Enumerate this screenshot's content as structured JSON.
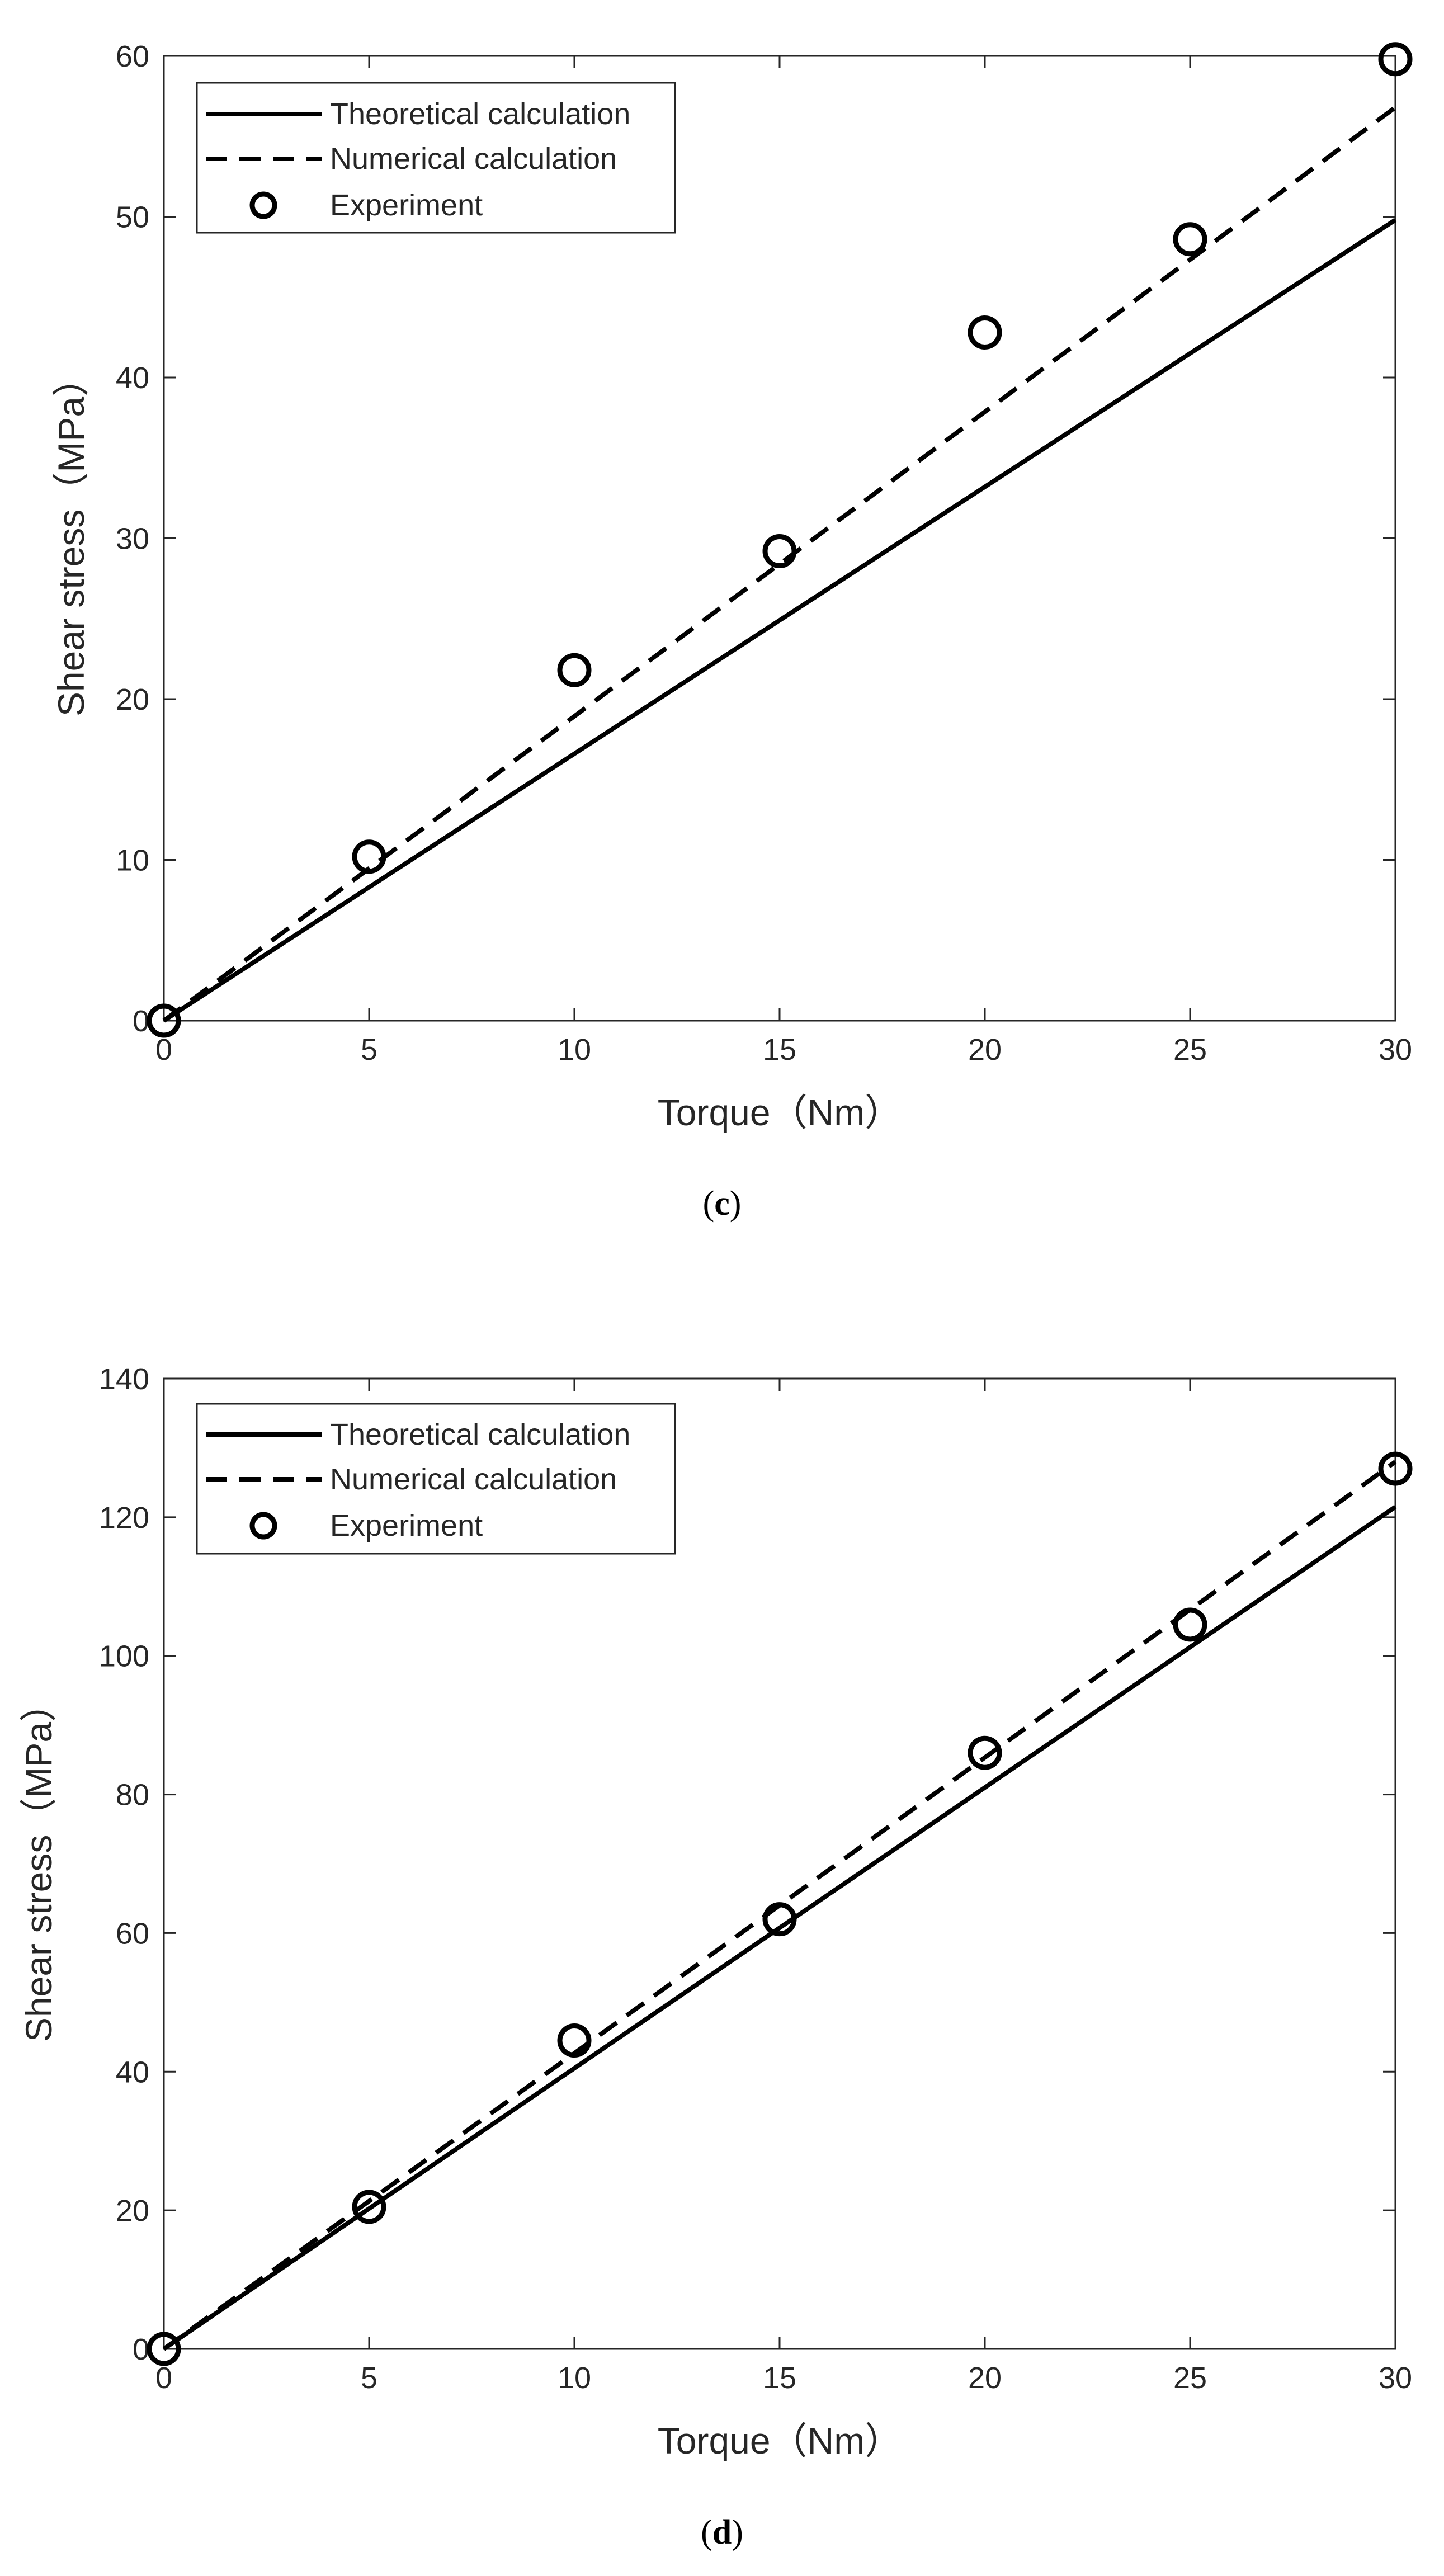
{
  "chart_data": [
    {
      "type": "line",
      "panel": "c",
      "xlabel": "Torque（Nm）",
      "ylabel": "Shear stress（MPa）",
      "xlim": [
        0,
        30
      ],
      "ylim": [
        0,
        60
      ],
      "xticks": [
        0,
        5,
        10,
        15,
        20,
        25,
        30
      ],
      "yticks": [
        0,
        10,
        20,
        30,
        40,
        50,
        60
      ],
      "legend_position": "top-left",
      "series": [
        {
          "name": "Theoretical calculation",
          "style": "solid",
          "x": [
            0,
            30
          ],
          "y": [
            0,
            49.8
          ]
        },
        {
          "name": "Numerical calculation",
          "style": "dashed",
          "x": [
            0,
            30
          ],
          "y": [
            0,
            56.8
          ]
        },
        {
          "name": "Experiment",
          "style": "marker",
          "x": [
            0,
            5,
            10,
            15,
            20,
            25,
            30
          ],
          "y": [
            0,
            10.2,
            21.8,
            29.2,
            42.8,
            48.6,
            59.8
          ]
        }
      ]
    },
    {
      "type": "line",
      "panel": "d",
      "xlabel": "Torque（Nm）",
      "ylabel": "Shear stress（MPa）",
      "xlim": [
        0,
        30
      ],
      "ylim": [
        0,
        140
      ],
      "xticks": [
        0,
        5,
        10,
        15,
        20,
        25,
        30
      ],
      "yticks": [
        0,
        20,
        40,
        60,
        80,
        100,
        120,
        140
      ],
      "legend_position": "top-left",
      "series": [
        {
          "name": "Theoretical calculation",
          "style": "solid",
          "x": [
            0,
            30
          ],
          "y": [
            0,
            121.5
          ]
        },
        {
          "name": "Numerical calculation",
          "style": "dashed",
          "x": [
            0,
            30
          ],
          "y": [
            0,
            128.0
          ]
        },
        {
          "name": "Experiment",
          "style": "marker",
          "x": [
            0,
            5,
            10,
            15,
            20,
            25,
            30
          ],
          "y": [
            0,
            20.5,
            44.5,
            62.0,
            86.0,
            104.5,
            127.0
          ]
        }
      ]
    }
  ],
  "captions": {
    "c": {
      "open": "(",
      "letter": "c",
      "close": ")"
    },
    "d": {
      "open": "(",
      "letter": "d",
      "close": ")"
    }
  }
}
